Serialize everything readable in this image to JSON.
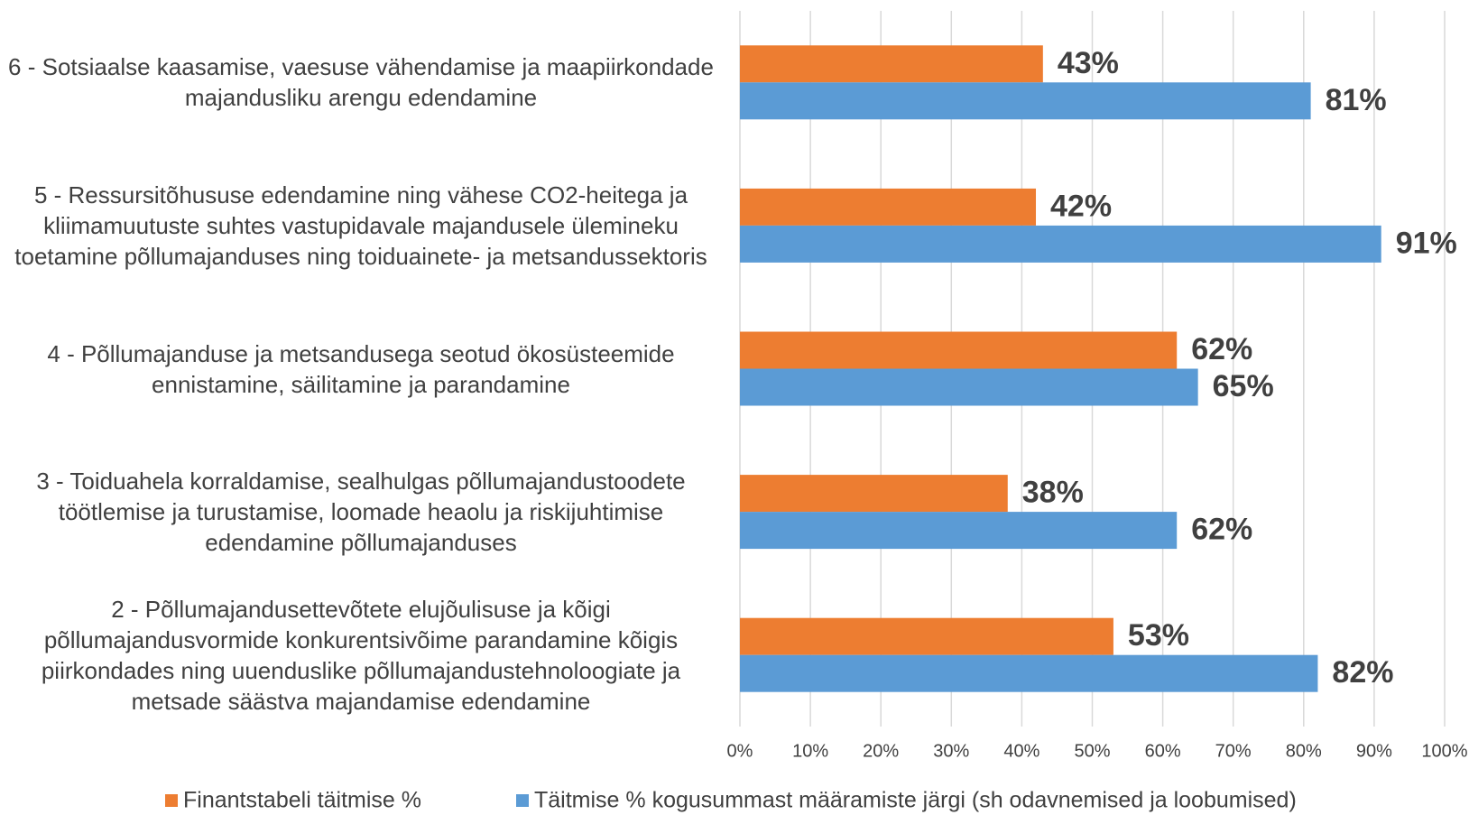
{
  "chart_data": {
    "type": "bar",
    "orientation": "horizontal",
    "categories": [
      "6 - Sotsiaalse kaasamise, vaesuse vähendamise ja maapiirkondade majandusliku arengu edendamine",
      "5 - Ressursitõhususe edendamine ning vähese CO2-heitega ja kliimamuutuste suhtes vastupidavale majandusele ülemineku toetamine põllumajanduses ning toiduainete- ja metsandussektoris",
      "4 - Põllumajanduse ja metsandusega seotud ökosüsteemide ennistamine, säilitamine ja parandamine",
      "3 - Toiduahela korraldamise, sealhulgas põllumajandustoodete töötlemise ja turustamise, loomade heaolu ja riskijuhtimise edendamine põllumajanduses",
      "2 - Põllumajandusettevõtete elujõulisuse ja kõigi põllumajandusvormide konkurentsivõime parandamine kõigis piirkondades ning uuenduslike põllumajandustehnoloogiate ja metsade säästva majandamise edendamine"
    ],
    "series": [
      {
        "name": "Finantstabeli täitmise %",
        "color": "#ed7d31",
        "values": [
          43,
          42,
          62,
          38,
          53
        ],
        "value_labels": [
          "43%",
          "42%",
          "62%",
          "38%",
          "53%"
        ]
      },
      {
        "name": "Täitmise % kogusummast määramiste järgi (sh odavnemised ja loobumised)",
        "color": "#5b9bd5",
        "values": [
          81,
          91,
          65,
          62,
          82
        ],
        "value_labels": [
          "81%",
          "91%",
          "65%",
          "62%",
          "82%"
        ]
      }
    ],
    "xlim": [
      0,
      100
    ],
    "xticks": [
      {
        "value": 0,
        "label": "0%"
      },
      {
        "value": 10,
        "label": "10%"
      },
      {
        "value": 20,
        "label": "20%"
      },
      {
        "value": 30,
        "label": "30%"
      },
      {
        "value": 40,
        "label": "40%"
      },
      {
        "value": 50,
        "label": "50%"
      },
      {
        "value": 60,
        "label": "60%"
      },
      {
        "value": 70,
        "label": "70%"
      },
      {
        "value": 80,
        "label": "80%"
      },
      {
        "value": 90,
        "label": "90%"
      },
      {
        "value": 100,
        "label": "100%"
      }
    ],
    "grid": true,
    "legend": "bottom"
  }
}
